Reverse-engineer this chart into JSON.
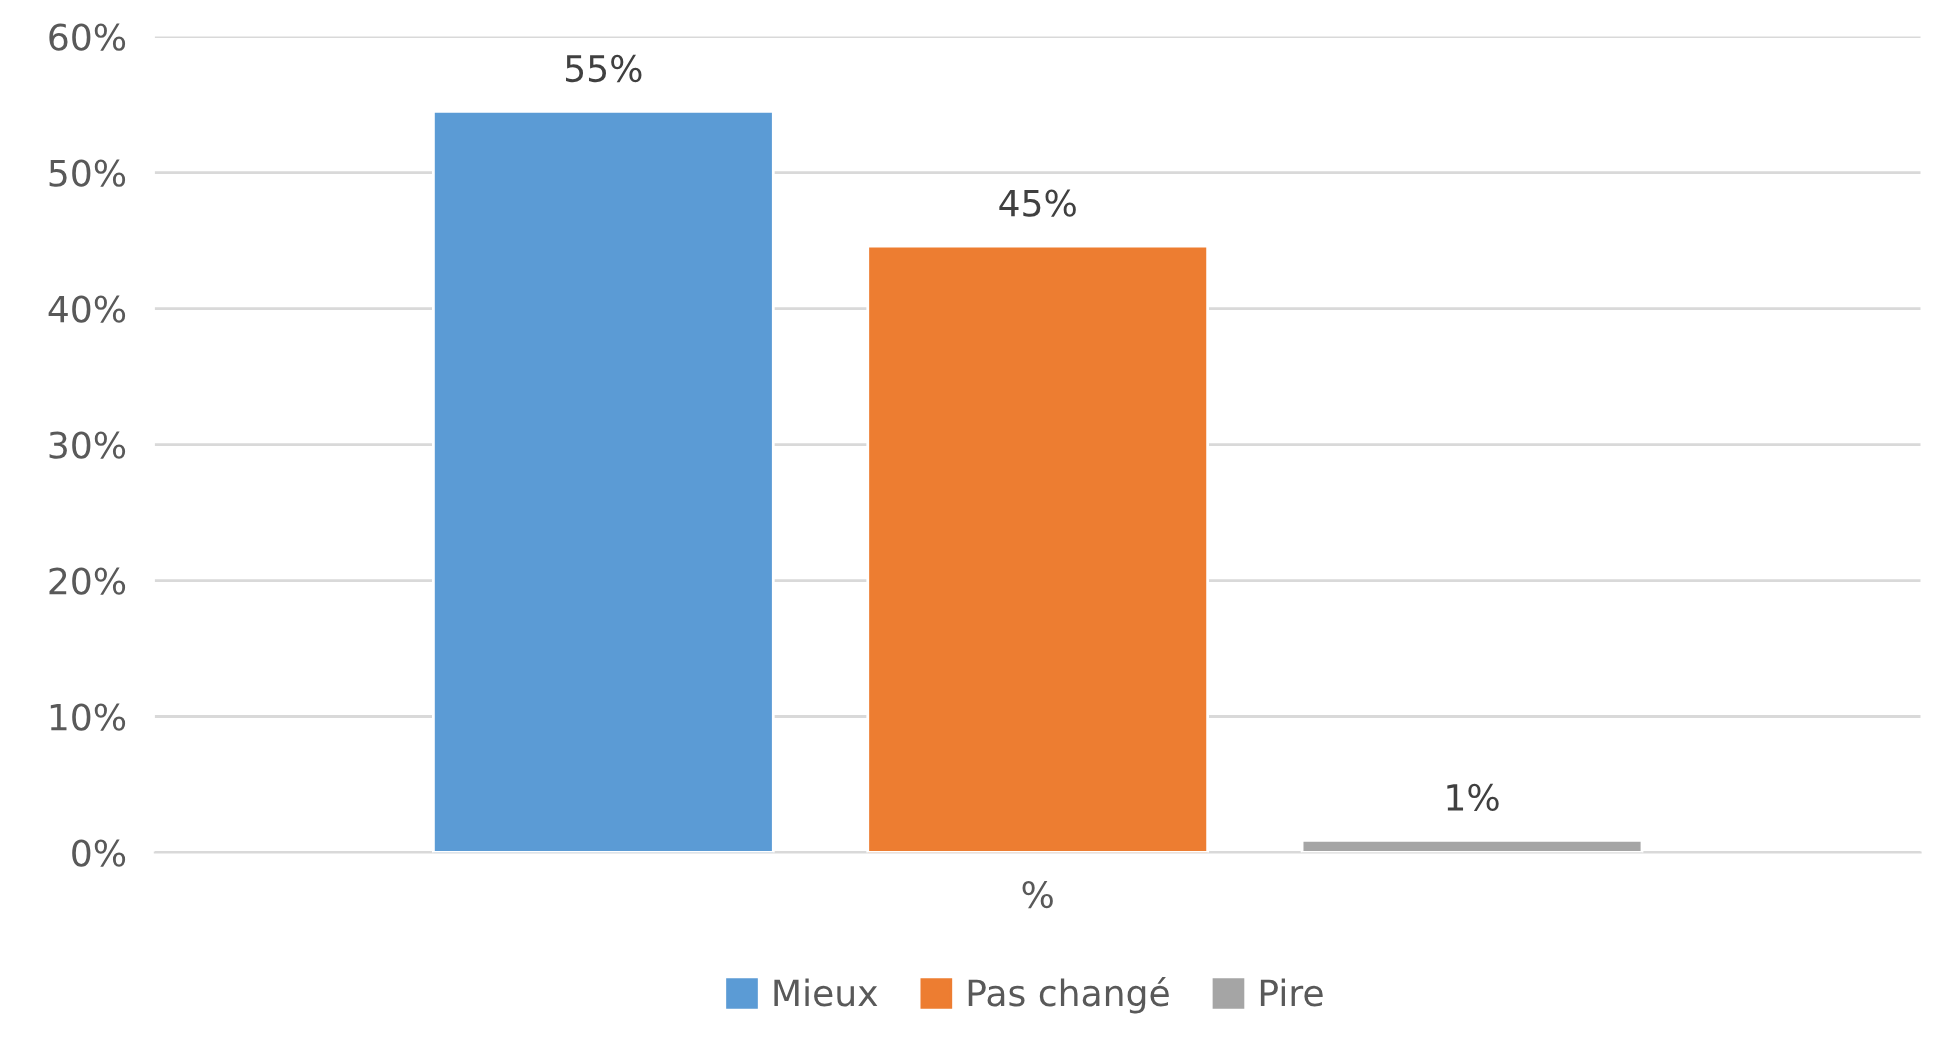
{
  "chart_data": {
    "type": "bar",
    "categories": [
      "%"
    ],
    "series": [
      {
        "name": "Mieux",
        "color": "#5b9bd5",
        "values": [
          54.5
        ],
        "value_labels": [
          "55%"
        ]
      },
      {
        "name": "Pas changé",
        "color": "#ed7d31",
        "values": [
          44.6
        ],
        "value_labels": [
          "45%"
        ]
      },
      {
        "name": "Pire",
        "color": "#a5a5a5",
        "values": [
          0.9
        ],
        "value_labels": [
          "1%"
        ]
      }
    ],
    "ylim": [
      0,
      60
    ],
    "yticks": [
      {
        "value": 0,
        "label": "0%"
      },
      {
        "value": 10,
        "label": "10%"
      },
      {
        "value": 20,
        "label": "20%"
      },
      {
        "value": 30,
        "label": "30%"
      },
      {
        "value": 40,
        "label": "40%"
      },
      {
        "value": 50,
        "label": "50%"
      },
      {
        "value": 60,
        "label": "60%"
      }
    ],
    "grid": "y",
    "legend": "bottom"
  }
}
